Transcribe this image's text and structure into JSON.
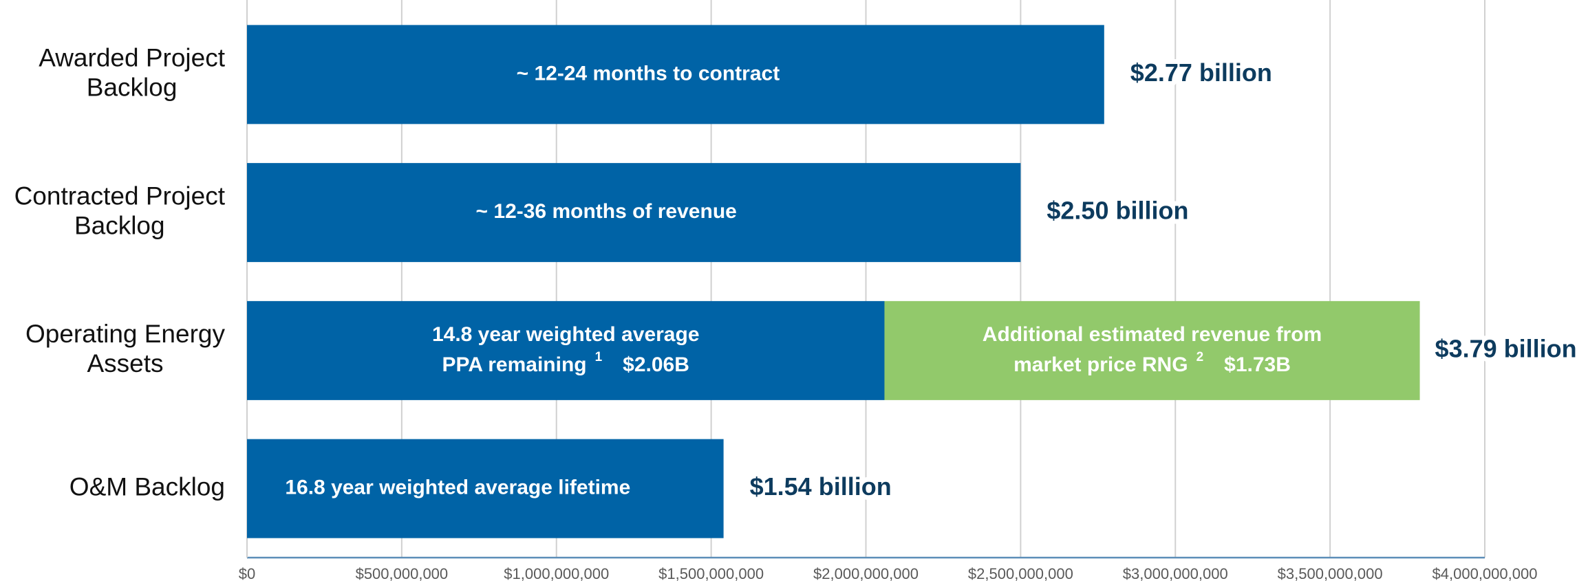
{
  "chart_data": {
    "type": "stacked-barh",
    "categories": [
      [
        "Awarded Project",
        "Backlog"
      ],
      [
        "Contracted Project",
        "Backlog"
      ],
      [
        "Operating Energy",
        "Assets"
      ],
      [
        "O&M Backlog"
      ]
    ],
    "series": [
      {
        "color": "#0063a6",
        "values": [
          2770000000,
          2500000000,
          2060000000,
          1540000000
        ],
        "value_labels": [
          "$2.77 billion",
          "$2.50 billion",
          "$2.06B",
          "$1.54 billion"
        ],
        "annotations": [
          [
            "~ 12-24 months to contract"
          ],
          [
            "~ 12-36 months of revenue"
          ],
          [
            "14.8 year weighted average",
            "PPA remaining"
          ],
          [
            "16.8 year weighted average lifetime"
          ]
        ],
        "footnotes": [
          null,
          null,
          "1",
          null
        ]
      },
      {
        "color": "#92c96b",
        "values": [
          null,
          null,
          1730000000,
          null
        ],
        "value_labels": [
          null,
          null,
          "$1.73B",
          null
        ],
        "annotations": [
          null,
          null,
          [
            "Additional estimated revenue from",
            "market price RNG"
          ],
          null
        ],
        "footnotes": [
          null,
          null,
          "2",
          null
        ]
      }
    ],
    "totals": [
      null,
      null,
      3790000000,
      null
    ],
    "total_labels": [
      null,
      null,
      "$3.79 billion",
      null
    ],
    "xlim": [
      0,
      4000000000
    ],
    "xticks": [
      {
        "value": 0,
        "label": "$0"
      },
      {
        "value": 500000000,
        "label": "$500,000,000"
      },
      {
        "value": 1000000000,
        "label": "$1,000,000,000"
      },
      {
        "value": 1500000000,
        "label": "$1,500,000,000"
      },
      {
        "value": 2000000000,
        "label": "$2,000,000,000"
      },
      {
        "value": 2500000000,
        "label": "$2,500,000,000"
      },
      {
        "value": 3000000000,
        "label": "$3,000,000,000"
      },
      {
        "value": 3500000000,
        "label": "$3,500,000,000"
      },
      {
        "value": 4000000000,
        "label": "$4,000,000,000"
      }
    ],
    "grid": true
  }
}
